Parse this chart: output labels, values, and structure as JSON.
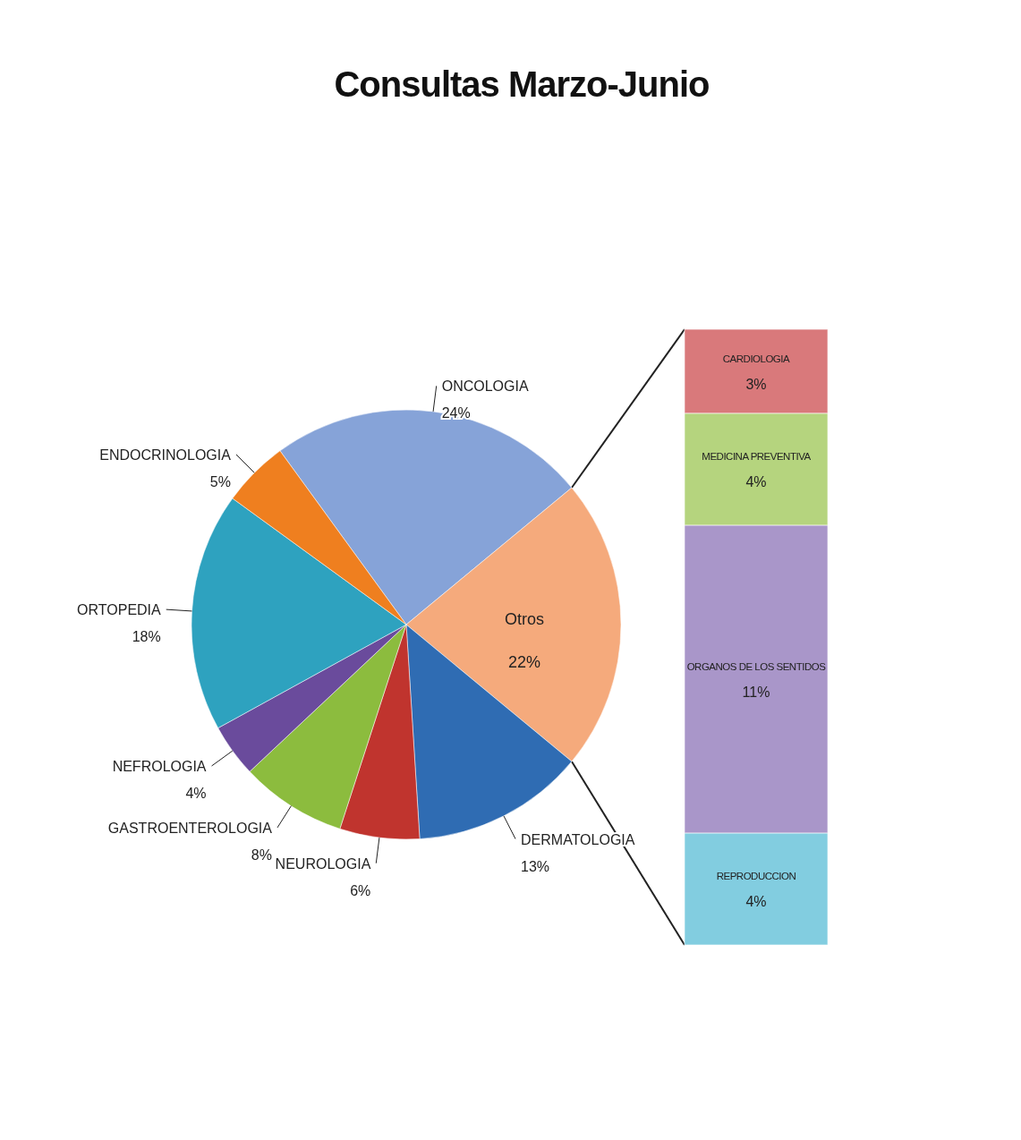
{
  "chart_data": [
    {
      "type": "pie",
      "title": "Consultas Marzo-Junio",
      "categories": [
        "ONCOLOGIA",
        "Otros",
        "DERMATOLOGIA",
        "NEUROLOGIA",
        "GASTROENTEROLOGIA",
        "NEFROLOGIA",
        "ORTOPEDIA",
        "ENDOCRINOLOGIA"
      ],
      "values": [
        24,
        22,
        13,
        6,
        8,
        4,
        18,
        5
      ],
      "value_labels": [
        "24%",
        "22%",
        "13%",
        "6%",
        "8%",
        "4%",
        "18%",
        "5%"
      ],
      "colors": [
        "#86a3d8",
        "#f5aa7c",
        "#2f6cb3",
        "#c0342e",
        "#8cbc3e",
        "#6a4b9c",
        "#2ea2bf",
        "#ef7f1f"
      ]
    },
    {
      "type": "bar",
      "stacked": true,
      "categories": [
        null
      ],
      "series": [
        {
          "name": "REPRODUCCION",
          "color": "#82cde0",
          "values": [
            4
          ],
          "value_labels": [
            "4%"
          ]
        },
        {
          "name": "ORGANOS  DE LOS SENTIDOS",
          "color": "#a996c9",
          "values": [
            11
          ],
          "value_labels": [
            "11%"
          ]
        },
        {
          "name": "MEDICINA PREVENTIVA",
          "color": "#b5d47e",
          "values": [
            4
          ],
          "value_labels": [
            "4%"
          ]
        },
        {
          "name": "CARDIOLOGIA",
          "color": "#d9797b",
          "values": [
            3
          ],
          "value_labels": [
            "3%"
          ]
        }
      ]
    }
  ]
}
